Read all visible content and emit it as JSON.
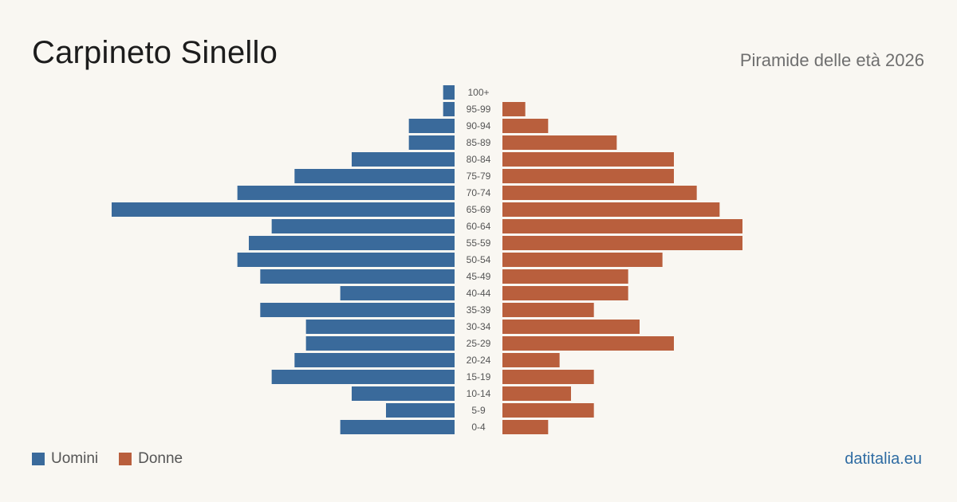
{
  "header": {
    "title": "Carpineto Sinello",
    "subtitle": "Piramide delle età 2026"
  },
  "legend": {
    "men_label": "Uomini",
    "women_label": "Donne"
  },
  "footer": {
    "source": "datitalia.eu"
  },
  "colors": {
    "men": "#3a6a9b",
    "women": "#b95f3d",
    "background": "#f9f7f2",
    "age_label": "#555555"
  },
  "chart_data": {
    "type": "bar",
    "orientation": "horizontal-pyramid",
    "categories": [
      "100+",
      "95-99",
      "90-94",
      "85-89",
      "80-84",
      "75-79",
      "70-74",
      "65-69",
      "60-64",
      "55-59",
      "50-54",
      "45-49",
      "40-44",
      "35-39",
      "30-34",
      "25-29",
      "20-24",
      "15-19",
      "10-14",
      "5-9",
      "0-4"
    ],
    "series": [
      {
        "name": "Uomini",
        "values": [
          1,
          1,
          4,
          4,
          9,
          14,
          19,
          30,
          16,
          18,
          19,
          17,
          10,
          17,
          13,
          13,
          14,
          16,
          9,
          6,
          10
        ]
      },
      {
        "name": "Donne",
        "values": [
          0,
          2,
          4,
          10,
          15,
          15,
          17,
          19,
          21,
          21,
          14,
          11,
          11,
          8,
          12,
          15,
          5,
          8,
          6,
          8,
          4
        ]
      }
    ],
    "xlim": [
      0,
      30
    ],
    "legend_position": "bottom-left",
    "grid": false
  }
}
